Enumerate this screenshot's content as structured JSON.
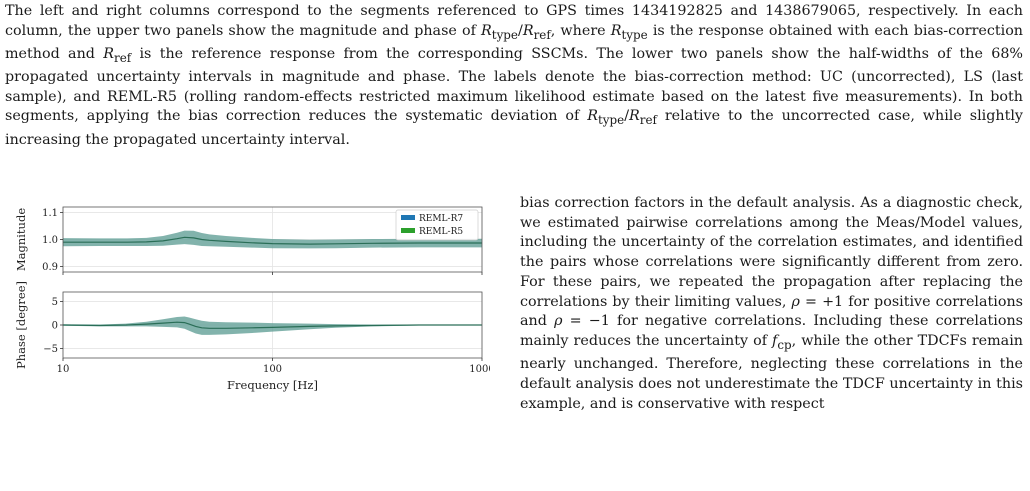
{
  "caption": {
    "text": "The left and right columns correspond to the segments referenced to GPS times 1434192825 and 1438679065, respectively. In each column, the upper two panels show the magnitude and phase of R_type/R_ref, where R_type is the response obtained with each bias-correction method and R_ref is the reference response from the corresponding SSCMs. The lower two panels show the half-widths of the 68% propagated uncertainty intervals in magnitude and phase. The labels denote the bias-correction method: UC (uncorrected), LS (last sample), and REML-R5 (rolling random-effects restricted maximum likelihood estimate based on the latest five measurements). In both segments, applying the bias correction reduces the systematic deviation of R_type/R_ref relative to the uncorrected case, while slightly increasing the propagated uncertainty interval."
  },
  "body": {
    "text": "bias correction factors in the default analysis. As a diagnostic check, we estimated pairwise correlations among the Meas/Model values, including the uncertainty of the correlation estimates, and identified the pairs whose correlations were significantly different from zero. For these pairs, we repeated the propagation after replacing the correlations by their limiting values, ρ = +1 for positive correlations and ρ = −1 for negative correlations. Including these correlations mainly reduces the uncertainty of f_cp, while the other TDCFs remain nearly unchanged. Therefore, neglecting these correlations in the default analysis does not underestimate the TDCF uncertainty in this example, and is conservative with respect"
  },
  "chart_data": {
    "type": "line",
    "xlabel": "Frequency [Hz]",
    "xscale": "log",
    "xlim": [
      10,
      1000
    ],
    "xticks": [
      "10",
      "100",
      "1000"
    ],
    "legend": {
      "placement": "top-right",
      "entries": [
        "REML-R7",
        "REML-R5"
      ]
    },
    "colors": {
      "REML-R7": "#1f77b4",
      "REML-R5": "#2ca02c",
      "band": "#5f9e95",
      "line": "#2a6e57"
    },
    "grid": true,
    "panels": [
      {
        "ylabel": "Magnitude",
        "ylim": [
          0.88,
          1.12
        ],
        "yticks": [
          "0.9",
          "1.0",
          "1.1"
        ],
        "x": [
          10,
          15,
          20,
          25,
          30,
          35,
          38,
          42,
          46,
          50,
          60,
          80,
          100,
          150,
          200,
          300,
          500,
          700,
          1000
        ],
        "center": [
          0.99,
          0.99,
          0.99,
          0.991,
          0.995,
          1.003,
          1.008,
          1.006,
          1.0,
          0.997,
          0.993,
          0.988,
          0.985,
          0.983,
          0.984,
          0.986,
          0.987,
          0.987,
          0.987
        ],
        "halfwidth": [
          0.015,
          0.014,
          0.014,
          0.015,
          0.018,
          0.022,
          0.025,
          0.026,
          0.024,
          0.022,
          0.02,
          0.018,
          0.017,
          0.016,
          0.016,
          0.016,
          0.016,
          0.016,
          0.016
        ]
      },
      {
        "ylabel": "Phase [degree]",
        "ylim": [
          -7,
          7
        ],
        "yticks": [
          "5",
          "0",
          "−5"
        ],
        "x": [
          10,
          15,
          20,
          25,
          30,
          35,
          38,
          40,
          43,
          46,
          50,
          60,
          80,
          100,
          150,
          200,
          300,
          500,
          700,
          1000
        ],
        "center": [
          0.0,
          -0.1,
          0.0,
          0.2,
          0.4,
          0.6,
          0.5,
          0.2,
          -0.3,
          -0.6,
          -0.7,
          -0.7,
          -0.6,
          -0.5,
          -0.3,
          -0.2,
          -0.1,
          0.0,
          0.0,
          0.0
        ],
        "halfwidth": [
          0.15,
          0.2,
          0.3,
          0.5,
          0.8,
          1.1,
          1.3,
          1.4,
          1.5,
          1.5,
          1.4,
          1.3,
          1.1,
          0.9,
          0.6,
          0.4,
          0.2,
          0.1,
          0.05,
          0.05
        ]
      }
    ]
  }
}
